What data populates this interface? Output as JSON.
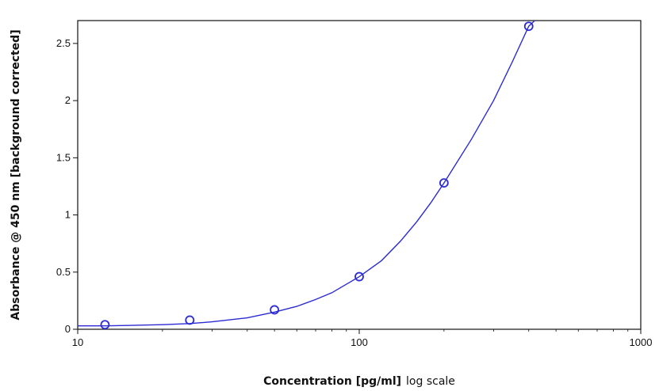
{
  "chart_data": {
    "type": "scatter",
    "title": "",
    "xlabel": "Concentration [pg/ml]",
    "xlabel_suffix": "log scale",
    "ylabel": "Absorbance @ 450 nm [background corrected]",
    "x_scale": "log",
    "xlim": [
      10,
      1000
    ],
    "ylim": [
      0,
      2.7
    ],
    "x_ticks": [
      10,
      100,
      1000
    ],
    "x_tick_labels": [
      "10",
      "100",
      "1000"
    ],
    "y_ticks": [
      0,
      0.5,
      1,
      1.5,
      2,
      2.5
    ],
    "y_tick_labels": [
      "0",
      "0.5",
      "1",
      "1.5",
      "2",
      "2.5"
    ],
    "grid": false,
    "legend": "none",
    "series": [
      {
        "points": [
          {
            "x": 12.5,
            "y": 0.04
          },
          {
            "x": 25,
            "y": 0.08
          },
          {
            "x": 50,
            "y": 0.17
          },
          {
            "x": 100,
            "y": 0.46
          },
          {
            "x": 200,
            "y": 1.28
          },
          {
            "x": 400,
            "y": 2.65
          }
        ],
        "fit_curve": {
          "x": [
            10,
            12.5,
            15,
            20,
            25,
            30,
            40,
            50,
            60,
            70,
            80,
            100,
            120,
            140,
            160,
            180,
            200,
            250,
            300,
            350,
            400,
            420
          ],
          "y": [
            0.03,
            0.03,
            0.033,
            0.04,
            0.05,
            0.065,
            0.1,
            0.15,
            0.2,
            0.26,
            0.32,
            0.46,
            0.6,
            0.77,
            0.94,
            1.11,
            1.28,
            1.66,
            2.0,
            2.34,
            2.65,
            2.72
          ]
        },
        "color": "#2b2bd4"
      }
    ]
  }
}
